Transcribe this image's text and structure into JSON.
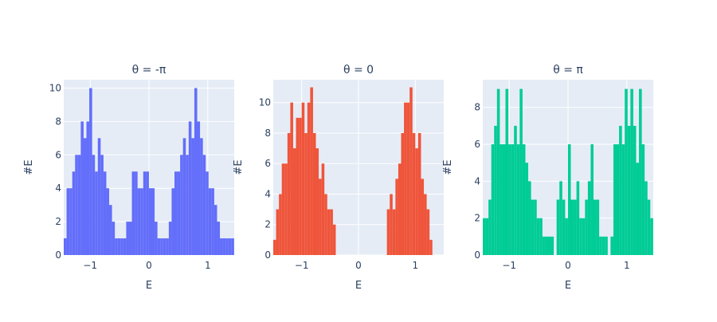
{
  "chart_data": [
    {
      "type": "bar",
      "title": "θ = -π",
      "xlabel": "E",
      "ylabel": "#E",
      "color": "#636efa",
      "xlim": [
        -1.45,
        1.45
      ],
      "ylim": [
        0,
        10.5
      ],
      "xticks": [
        {
          "value": -1,
          "label": "−1"
        },
        {
          "value": 0,
          "label": "0"
        },
        {
          "value": 1,
          "label": "1"
        }
      ],
      "yticks": [
        {
          "value": 0,
          "label": "0"
        },
        {
          "value": 2,
          "label": "2"
        },
        {
          "value": 4,
          "label": "4"
        },
        {
          "value": 6,
          "label": "6"
        },
        {
          "value": 8,
          "label": "8"
        },
        {
          "value": 10,
          "label": "10"
        }
      ],
      "bin_start": -1.45,
      "bin_width": 0.0483,
      "values": [
        1,
        4,
        4,
        5,
        6,
        6,
        8,
        7,
        8,
        10,
        6,
        5,
        7,
        6,
        5,
        4,
        3,
        2,
        1,
        1,
        1,
        1,
        2,
        2,
        5,
        5,
        4,
        4,
        5,
        5,
        4,
        4,
        2,
        1,
        1,
        1,
        1,
        2,
        4,
        5,
        5,
        6,
        7,
        6,
        8,
        7,
        10,
        8,
        7,
        6,
        5,
        4,
        4,
        3,
        2,
        1,
        1,
        1,
        1,
        1
      ]
    },
    {
      "type": "bar",
      "title": "θ = 0",
      "xlabel": "E",
      "ylabel": "#E",
      "color": "#ef553b",
      "xlim": [
        -1.5,
        1.5
      ],
      "ylim": [
        0,
        11.5
      ],
      "xticks": [
        {
          "value": -1,
          "label": "−1"
        },
        {
          "value": 0,
          "label": "0"
        },
        {
          "value": 1,
          "label": "1"
        }
      ],
      "yticks": [
        {
          "value": 0,
          "label": "0"
        },
        {
          "value": 2,
          "label": "2"
        },
        {
          "value": 4,
          "label": "4"
        },
        {
          "value": 6,
          "label": "6"
        },
        {
          "value": 8,
          "label": "8"
        },
        {
          "value": 10,
          "label": "10"
        }
      ],
      "bin_start": -1.5,
      "bin_width": 0.05,
      "values": [
        1,
        3,
        4,
        6,
        6,
        8,
        10,
        7,
        9,
        9,
        10,
        8,
        10,
        11,
        8,
        7,
        5,
        6,
        4,
        3,
        3,
        2,
        0,
        0,
        0,
        0,
        0,
        0,
        0,
        0,
        0,
        0,
        0,
        0,
        0,
        0,
        0,
        0,
        0,
        0,
        3,
        4,
        3,
        5,
        6,
        8,
        10,
        10,
        11,
        8,
        7,
        8,
        5,
        4,
        3,
        1,
        0,
        0,
        0,
        0
      ]
    },
    {
      "type": "bar",
      "title": "θ = π",
      "xlabel": "E",
      "ylabel": "#E",
      "color": "#00cc96",
      "xlim": [
        -1.45,
        1.45
      ],
      "ylim": [
        0,
        9.5
      ],
      "xticks": [
        {
          "value": -1,
          "label": "−1"
        },
        {
          "value": 0,
          "label": "0"
        },
        {
          "value": 1,
          "label": "1"
        }
      ],
      "yticks": [
        {
          "value": 0,
          "label": "0"
        },
        {
          "value": 2,
          "label": "2"
        },
        {
          "value": 4,
          "label": "4"
        },
        {
          "value": 6,
          "label": "6"
        },
        {
          "value": 8,
          "label": "8"
        }
      ],
      "bin_start": -1.45,
      "bin_width": 0.0483,
      "values": [
        2,
        2,
        3,
        6,
        7,
        9,
        6,
        6,
        9,
        6,
        6,
        7,
        6,
        9,
        6,
        5,
        4,
        3,
        3,
        2,
        2,
        1,
        1,
        1,
        1,
        0,
        3,
        4,
        3,
        2,
        6,
        3,
        3,
        4,
        2,
        2,
        3,
        4,
        6,
        3,
        3,
        1,
        1,
        1,
        0,
        1,
        6,
        6,
        7,
        6,
        9,
        7,
        9,
        7,
        5,
        9,
        6,
        4,
        3,
        2
      ]
    }
  ]
}
